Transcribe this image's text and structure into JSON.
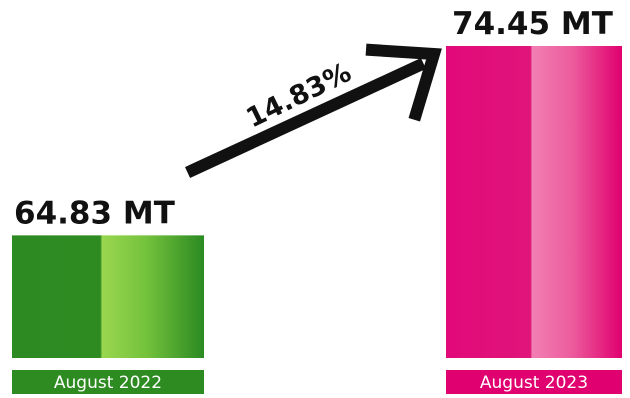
{
  "chart_data": {
    "type": "bar",
    "categories": [
      "August 2022",
      "August 2023"
    ],
    "values": [
      64.83,
      74.45
    ],
    "value_labels": [
      "64.83 MT",
      "74.45 MT"
    ],
    "unit": "MT",
    "growth_label": "14.83%",
    "colors": {
      "bar_2022": [
        "#2e8b22",
        "#8fd14f"
      ],
      "bar_2023": [
        "#e0006f",
        "#f06aa8"
      ],
      "arrow": "#111111"
    }
  }
}
